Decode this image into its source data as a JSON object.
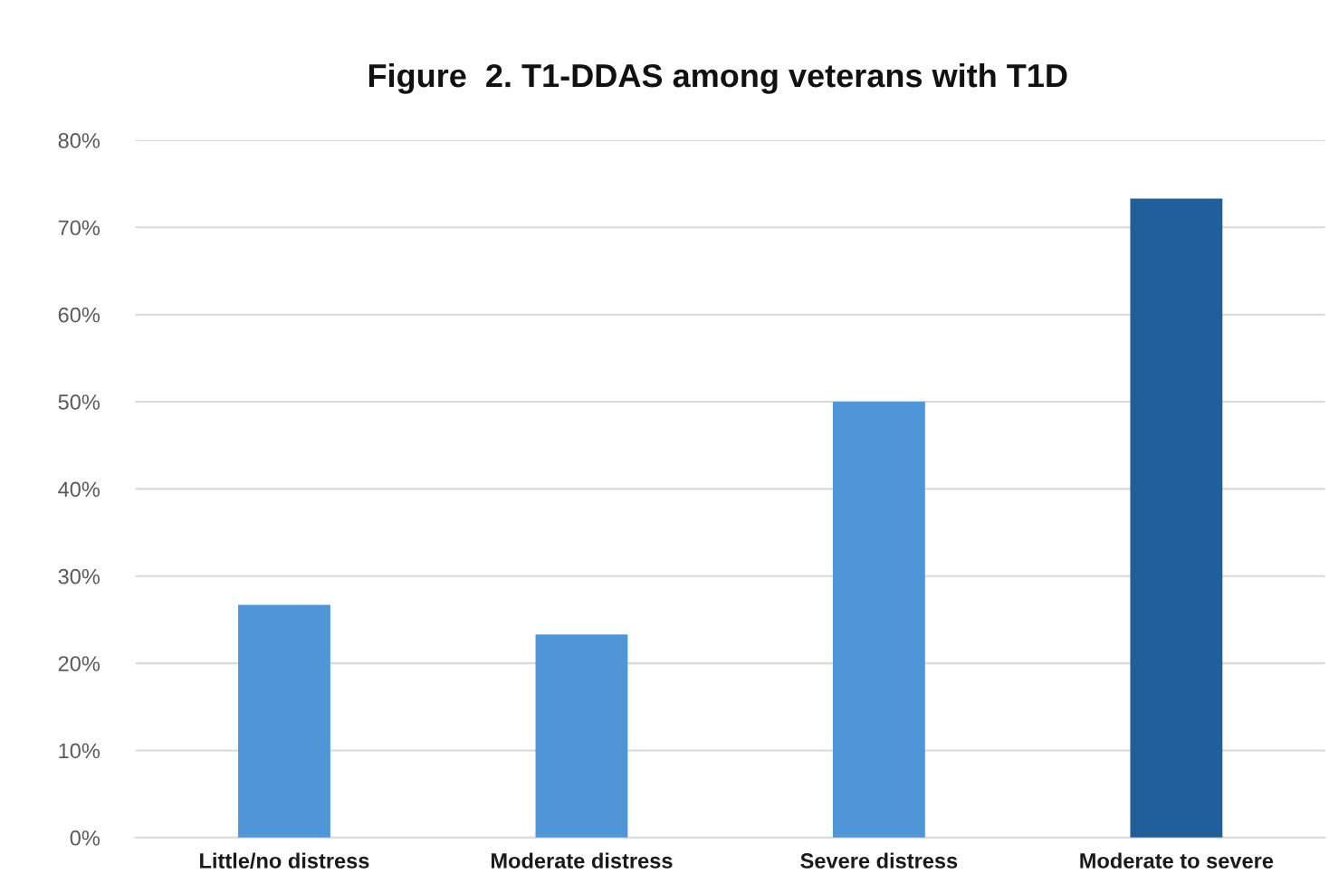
{
  "chart_data": {
    "type": "bar",
    "title": "Figure  2. T1-DDAS among veterans with T1D",
    "categories": [
      "Little/no distress",
      "Moderate distress",
      "Severe distress",
      "Moderate to severe"
    ],
    "values": [
      26.7,
      23.3,
      50,
      73.3
    ],
    "colors": [
      "#4f96d9",
      "#4f96d9",
      "#4f96d9",
      "#215f9a"
    ],
    "ylim": [
      0,
      80
    ],
    "yticks": [
      {
        "value": 0,
        "label": "0%"
      },
      {
        "value": 10,
        "label": "10%"
      },
      {
        "value": 20,
        "label": "20%"
      },
      {
        "value": 30,
        "label": "30%"
      },
      {
        "value": 40,
        "label": "40%"
      },
      {
        "value": 50,
        "label": "50%"
      },
      {
        "value": 60,
        "label": "60%"
      },
      {
        "value": 70,
        "label": "70%"
      },
      {
        "value": 80,
        "label": "80%"
      }
    ],
    "grid": "y",
    "legend": false
  }
}
